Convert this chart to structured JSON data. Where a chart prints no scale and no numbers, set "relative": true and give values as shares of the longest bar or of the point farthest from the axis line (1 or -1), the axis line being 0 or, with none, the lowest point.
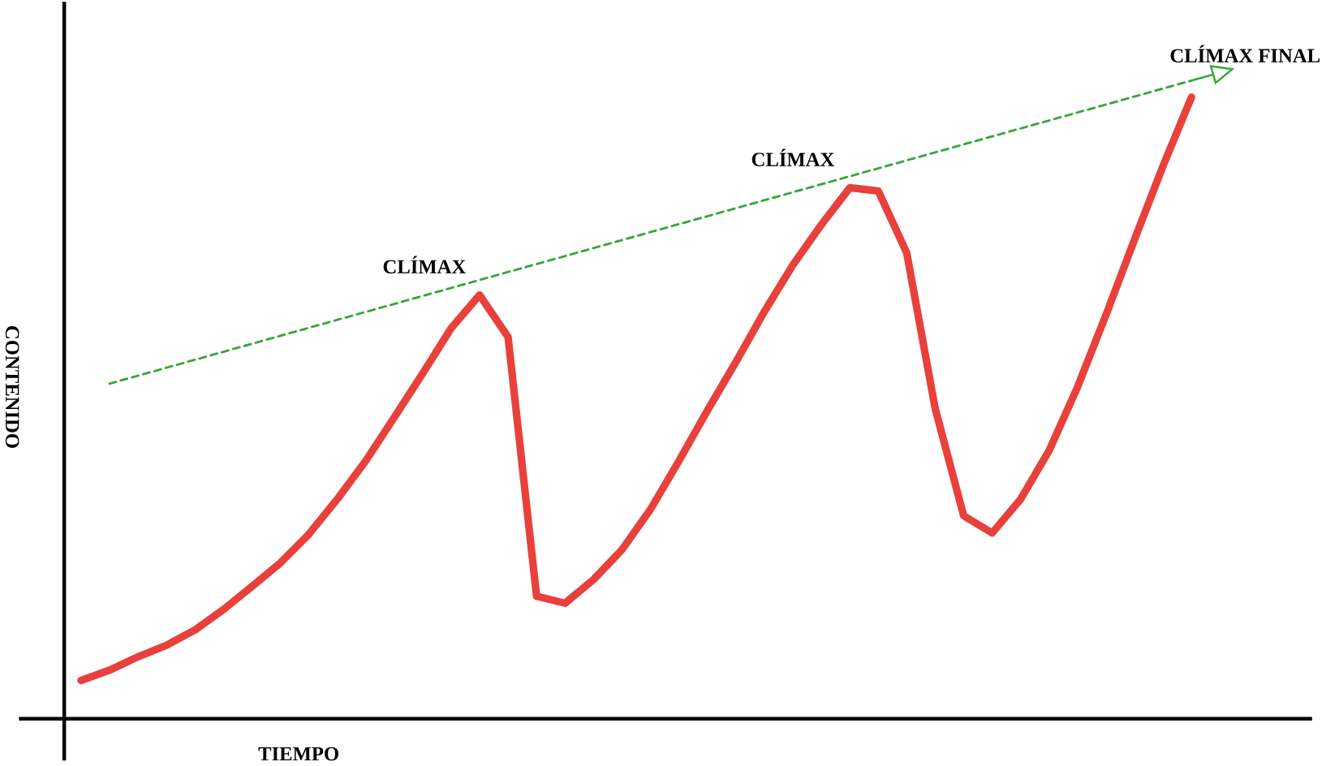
{
  "chart_data": {
    "type": "line",
    "relative": true,
    "xlabel": "TIEMPO",
    "ylabel": "CONTENIDO",
    "annotations": [
      "CLÍMAX",
      "CLÍMAX",
      "CLÍMAX FINAL"
    ],
    "categories": [
      null,
      null,
      null,
      null,
      null,
      null,
      null,
      null,
      null,
      null,
      null,
      null,
      null,
      null,
      null,
      null,
      null,
      null,
      null,
      null,
      null,
      null,
      null,
      null,
      null,
      null,
      null,
      null,
      null,
      null,
      null,
      null,
      null,
      null,
      null,
      null,
      null,
      null,
      null,
      null
    ],
    "series": [
      {
        "color": "#e8413c",
        "values": [
          0.06,
          0.076,
          0.097,
          0.115,
          0.139,
          0.171,
          0.207,
          0.244,
          0.289,
          0.344,
          0.404,
          0.472,
          0.541,
          0.612,
          0.664,
          0.598,
          0.192,
          0.181,
          0.218,
          0.265,
          0.328,
          0.404,
          0.483,
          0.559,
          0.638,
          0.711,
          0.774,
          0.832,
          0.827,
          0.73,
          0.486,
          0.318,
          0.291,
          0.344,
          0.42,
          0.52,
          0.633,
          0.751,
          0.866,
          0.974
        ]
      },
      {
        "color": "#3aa63a",
        "line_style": "dashed",
        "values": [
          null,
          0.525,
          null,
          null,
          null,
          null,
          null,
          null,
          null,
          null,
          null,
          null,
          null,
          null,
          null,
          null,
          null,
          null,
          null,
          null,
          null,
          null,
          null,
          null,
          null,
          null,
          null,
          null,
          null,
          null,
          null,
          null,
          null,
          null,
          null,
          null,
          null,
          null,
          null,
          1
        ]
      }
    ],
    "marker": "none"
  }
}
